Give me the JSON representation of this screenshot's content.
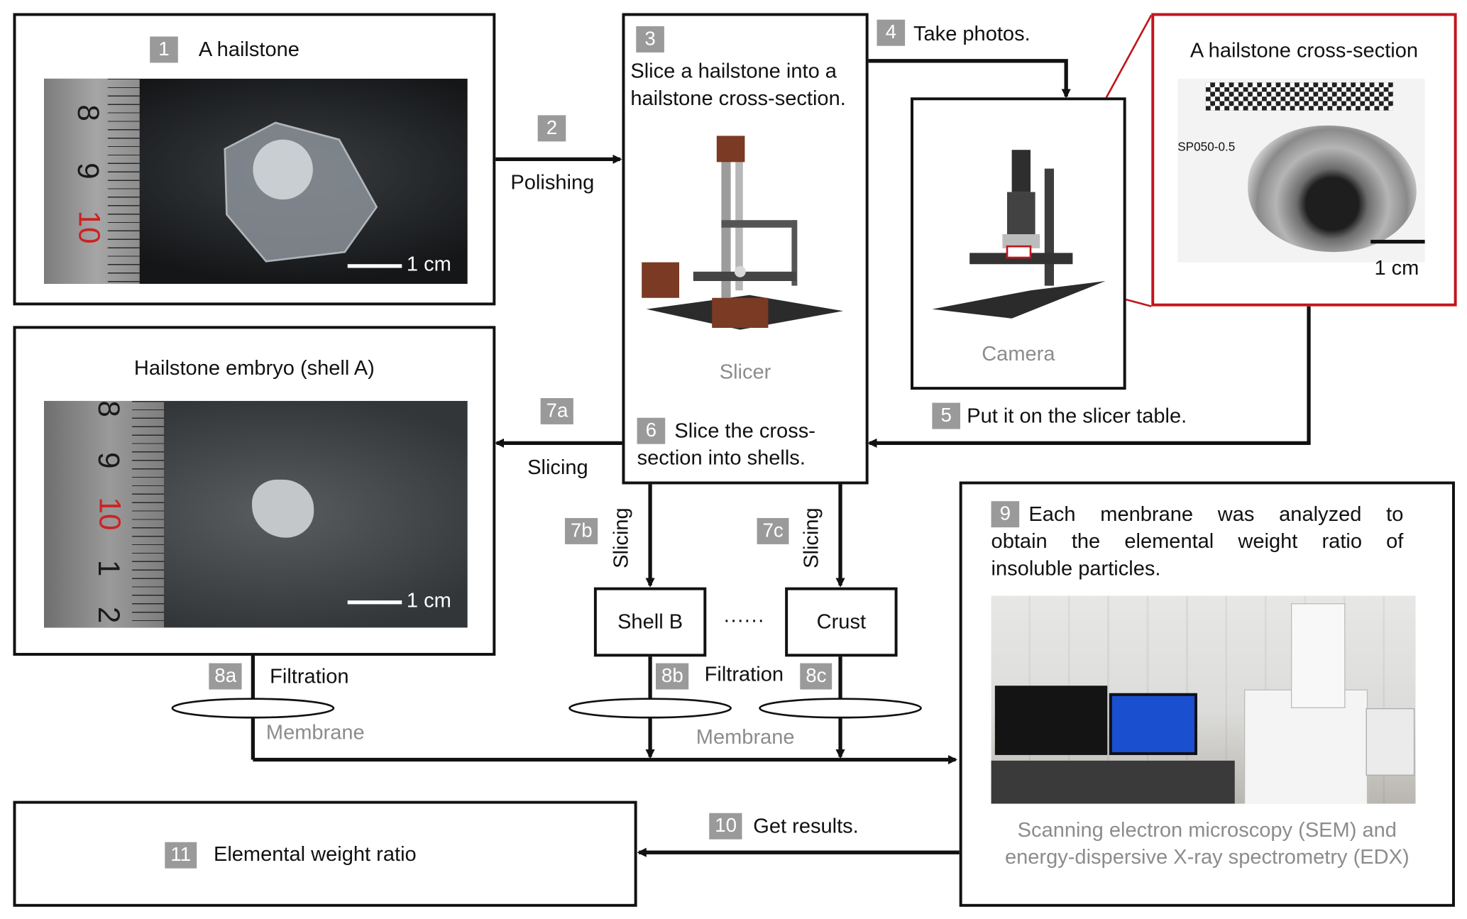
{
  "steps": {
    "s1": {
      "num": "1",
      "label": "A hailstone"
    },
    "s2": {
      "num": "2",
      "label": "Polishing"
    },
    "s3": {
      "num": "3",
      "line1": "Slice a hailstone into a",
      "line2": "hailstone cross-section."
    },
    "s4": {
      "num": "4",
      "label": "Take photos."
    },
    "s5": {
      "num": "5",
      "label": "Put it on the slicer table."
    },
    "s6": {
      "num": "6",
      "line1": "Slice the cross-",
      "line2": "section into shells."
    },
    "s7a": {
      "num": "7a",
      "label": "Slicing"
    },
    "s7b": {
      "num": "7b",
      "label": "Slicing"
    },
    "s7c": {
      "num": "7c",
      "label": "Slicing"
    },
    "s8a": {
      "num": "8a",
      "label": "Filtration"
    },
    "s8b": {
      "num": "8b",
      "label": "Filtration"
    },
    "s8c": {
      "num": "8c"
    },
    "s9": {
      "num": "9",
      "line1": "Each menbrane was analyzed to",
      "line2": "obtain the elemental weight ratio of",
      "line3": "insoluble particles."
    },
    "s10": {
      "num": "10",
      "label": "Get results."
    },
    "s11": {
      "num": "11",
      "label": "Elemental weight ratio"
    }
  },
  "labels": {
    "slicer": "Slicer",
    "camera": "Camera",
    "cross_section_title": "A hailstone cross-section",
    "cross_section_code": "SP050-0.5",
    "embryo_title": "Hailstone embryo (shell A)",
    "shell_b": "Shell B",
    "crust": "Crust",
    "ellipsis": "······",
    "membrane": "Membrane",
    "sem_line1": "Scanning electron microscopy (SEM) and",
    "sem_line2": "energy-dispersive X-ray spectrometry (EDX)",
    "scale": "1 cm"
  },
  "ruler_numbers": [
    "8",
    "9",
    "10",
    "1",
    "2"
  ],
  "colors": {
    "highlight_box": "#c0161c",
    "badge": "#9a9a9a",
    "caption_gray": "#8c8c8c"
  }
}
